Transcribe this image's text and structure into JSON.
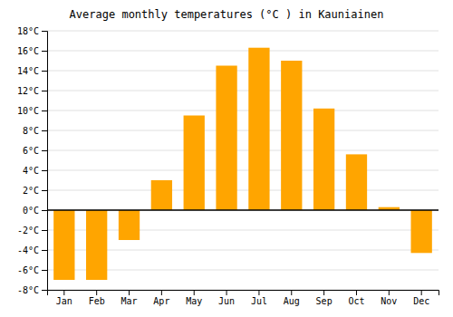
{
  "chart_data": {
    "type": "bar",
    "title": "Average monthly temperatures (°C ) in Kauniainen",
    "categories": [
      "Jan",
      "Feb",
      "Mar",
      "Apr",
      "May",
      "Jun",
      "Jul",
      "Aug",
      "Sep",
      "Oct",
      "Nov",
      "Dec"
    ],
    "values": [
      -7.0,
      -7.0,
      -3.0,
      3.0,
      9.5,
      14.5,
      16.3,
      15.0,
      10.2,
      5.6,
      0.3,
      -4.3
    ],
    "color": "#FFA500",
    "ylim": [
      -8,
      18
    ],
    "yticks": [
      {
        "value": -8,
        "label": "-8°C"
      },
      {
        "value": -6,
        "label": "-6°C"
      },
      {
        "value": -4,
        "label": "-4°C"
      },
      {
        "value": -2,
        "label": "-2°C"
      },
      {
        "value": 0,
        "label": "0°C"
      },
      {
        "value": 2,
        "label": "2°C"
      },
      {
        "value": 4,
        "label": "4°C"
      },
      {
        "value": 6,
        "label": "6°C"
      },
      {
        "value": 8,
        "label": "8°C"
      },
      {
        "value": 10,
        "label": "10°C"
      },
      {
        "value": 12,
        "label": "12°C"
      },
      {
        "value": 14,
        "label": "14°C"
      },
      {
        "value": 16,
        "label": "16°C"
      },
      {
        "value": 18,
        "label": "18°C"
      }
    ],
    "grid": true
  }
}
